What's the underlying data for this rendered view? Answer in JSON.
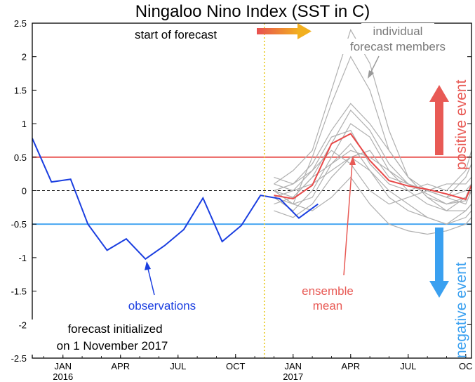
{
  "chart_data": {
    "type": "line",
    "title": "Ningaloo Nino Index (SST in C)",
    "x_labels": [
      {
        "label": "JAN",
        "year": "2016",
        "month": 24
      },
      {
        "label": "APR",
        "year": "",
        "month": 27
      },
      {
        "label": "JUL",
        "year": "",
        "month": 30
      },
      {
        "label": "OCT",
        "year": "",
        "month": 33
      },
      {
        "label": "JAN",
        "year": "2017",
        "month": 36
      },
      {
        "label": "APR",
        "year": "",
        "month": 39
      },
      {
        "label": "JUL",
        "year": "",
        "month": 42
      },
      {
        "label": "OC",
        "year": "",
        "month": 45
      }
    ],
    "xlim_months": [
      22.4,
      45.3
    ],
    "ylim": [
      -2.5,
      2.5
    ],
    "yticks": [
      "2.5",
      "2",
      "1.5",
      "1",
      "0.5",
      "0",
      "-0.5",
      "-1",
      "-1.5",
      "-2",
      "-2.5"
    ],
    "forecast_start_month": 34.5,
    "thresholds": [
      {
        "value": 0.5,
        "color": "#e8504e"
      },
      {
        "value": 0,
        "color": "#000000",
        "dashed": true
      },
      {
        "value": -0.5,
        "color": "#3aa0f0"
      }
    ],
    "observations": {
      "color": "#1a3ee0",
      "x": [
        22.4,
        23.4,
        24.4,
        25.3,
        26.3,
        27.3,
        28.3,
        29.3,
        30.3,
        31.3,
        32.3,
        33.3,
        34.3,
        35.3,
        36.3,
        37.3
      ],
      "y": [
        0.78,
        0.13,
        0.17,
        -0.5,
        -0.89,
        -0.72,
        -1.02,
        -0.82,
        -0.58,
        -0.11,
        -0.76,
        -0.52,
        -0.07,
        -0.12,
        -0.41,
        -0.2
      ]
    },
    "ensemble_mean": {
      "color": "#e84848",
      "x": [
        35.0,
        36.0,
        37.0,
        38.0,
        39.0,
        40.0,
        41.0,
        42.0,
        43.0,
        44.0,
        45.0,
        45.3
      ],
      "y": [
        -0.07,
        -0.12,
        0.08,
        0.7,
        0.85,
        0.45,
        0.15,
        0.07,
        0.02,
        -0.05,
        -0.13,
        0.08
      ]
    },
    "members": {
      "color": "#b0b0b0",
      "x": [
        35.0,
        36.0,
        37.0,
        38.0,
        39.0,
        40.0,
        41.0,
        42.0,
        43.0,
        44.0,
        45.0,
        45.3
      ],
      "series": [
        [
          0.0,
          -0.2,
          0.5,
          1.3,
          2.0,
          1.5,
          0.6,
          0.2,
          0.0,
          -0.1,
          0.0,
          0.1
        ],
        [
          0.1,
          0.3,
          0.6,
          1.5,
          2.4,
          1.9,
          0.9,
          0.2,
          -0.1,
          -0.2,
          -0.1,
          0.0
        ],
        [
          -0.2,
          -0.1,
          0.2,
          0.7,
          1.2,
          0.9,
          0.4,
          0.1,
          0.0,
          -0.1,
          0.2,
          0.4
        ],
        [
          0.0,
          0.1,
          0.4,
          0.9,
          1.3,
          1.0,
          0.6,
          0.2,
          -0.1,
          -0.3,
          -0.1,
          0.1
        ],
        [
          -0.1,
          -0.3,
          0.0,
          0.5,
          1.0,
          0.8,
          0.3,
          0.0,
          -0.2,
          -0.3,
          -0.3,
          -0.2
        ],
        [
          -0.3,
          -0.4,
          -0.2,
          0.2,
          0.5,
          0.3,
          0.0,
          -0.2,
          -0.4,
          -0.5,
          -0.3,
          -0.2
        ],
        [
          0.1,
          0.0,
          0.3,
          0.8,
          0.9,
          0.4,
          0.1,
          0.0,
          0.1,
          0.0,
          0.3,
          0.6
        ],
        [
          0.0,
          -0.2,
          -0.1,
          0.4,
          0.7,
          0.3,
          -0.1,
          -0.3,
          -0.4,
          -0.5,
          -0.4,
          -0.3
        ],
        [
          -0.1,
          -0.2,
          -0.3,
          -0.1,
          0.2,
          -0.2,
          -0.5,
          -0.6,
          -0.65,
          -0.6,
          -0.5,
          -0.4
        ],
        [
          0.2,
          0.1,
          0.3,
          0.6,
          0.4,
          0.0,
          -0.2,
          -0.1,
          0.0,
          0.1,
          0.1,
          0.2
        ],
        [
          -0.1,
          0.0,
          0.1,
          0.3,
          0.5,
          0.6,
          0.2,
          0.1,
          0.0,
          -0.1,
          -0.2,
          0.0
        ],
        [
          0.0,
          -0.1,
          0.2,
          0.4,
          0.6,
          0.5,
          0.3,
          0.1,
          -0.05,
          -0.2,
          -0.15,
          0.1
        ]
      ]
    },
    "annotations": {
      "start_of_forecast": "start of forecast",
      "individual": "individual",
      "forecast_members": "forecast members",
      "positive_event": "positive event",
      "negative_event": "negative event",
      "ensemble": "ensemble",
      "mean": "mean",
      "observations": "observations",
      "init_line1": "forecast initialized",
      "init_line2": "on 1 November 2017"
    }
  }
}
